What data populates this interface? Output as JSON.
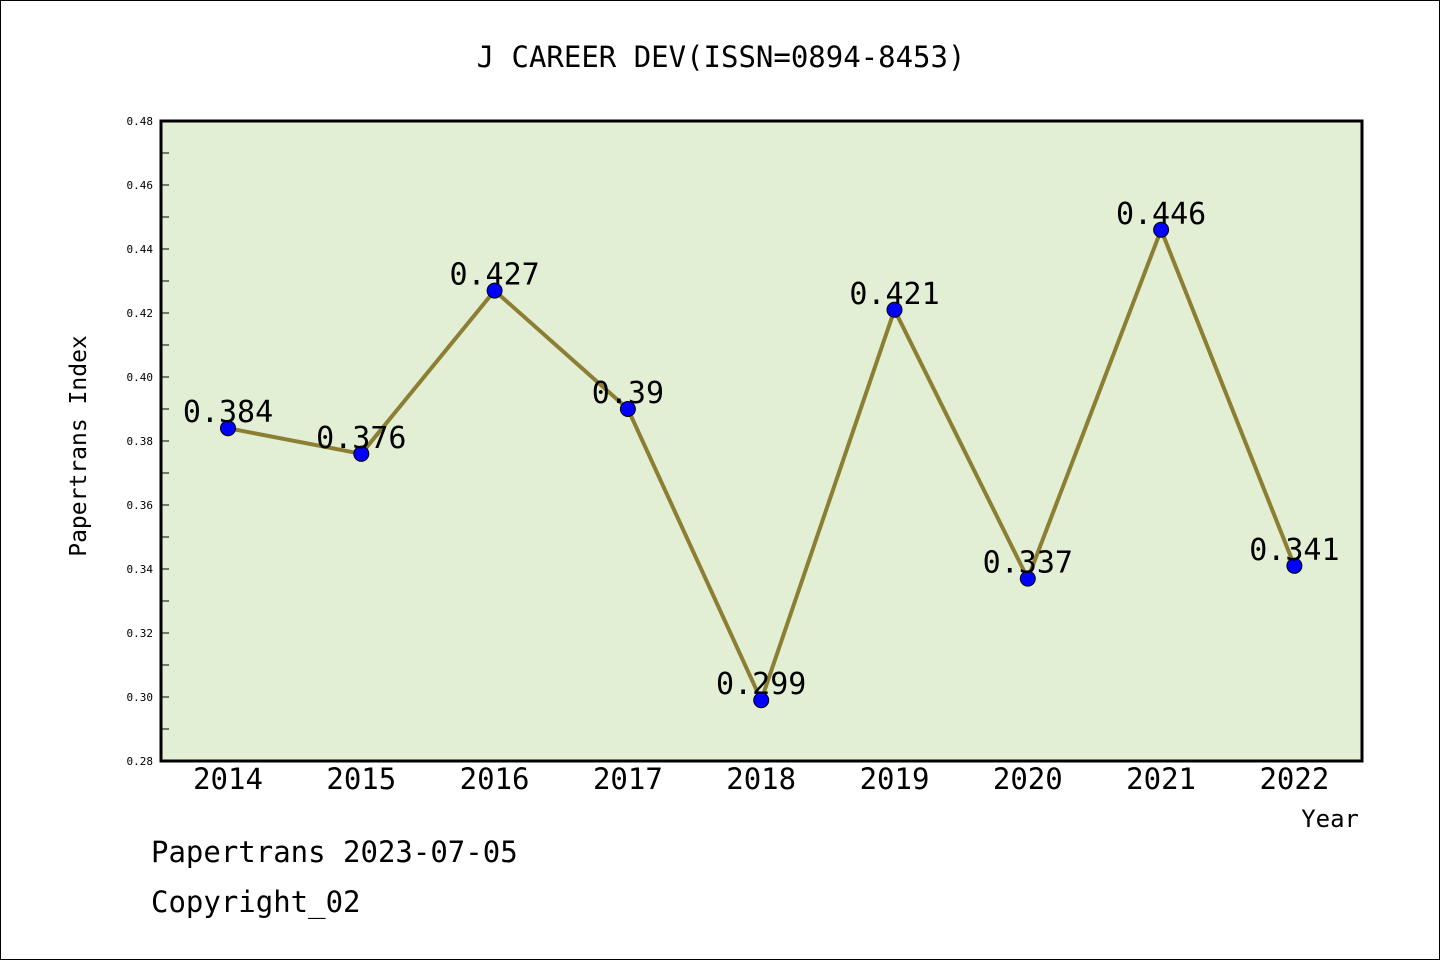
{
  "chart_data": {
    "type": "line",
    "title": "J CAREER DEV(ISSN=0894-8453)",
    "xlabel": "Year",
    "ylabel": "Papertrans Index",
    "categories": [
      "2014",
      "2015",
      "2016",
      "2017",
      "2018",
      "2019",
      "2020",
      "2021",
      "2022"
    ],
    "series": [
      {
        "values": [
          0.384,
          0.376,
          0.427,
          0.39,
          0.299,
          0.421,
          0.337,
          0.446,
          0.341
        ],
        "labels": [
          "0.384",
          "0.376",
          "0.427",
          "0.39",
          "0.299",
          "0.421",
          "0.337",
          "0.446",
          "0.341"
        ]
      }
    ],
    "ylim": [
      0.28,
      0.48
    ],
    "yticks": [
      0.28,
      0.3,
      0.32,
      0.34,
      0.36,
      0.38,
      0.4,
      0.42,
      0.44,
      0.46,
      0.48
    ],
    "ytick_labels": [
      "0.28",
      "0.30",
      "0.32",
      "0.34",
      "0.36",
      "0.38",
      "0.40",
      "0.42",
      "0.44",
      "0.46",
      "0.48"
    ],
    "grid": false,
    "legend": "none",
    "colors": {
      "plot_background": "#e2efd5",
      "line": "#8c7e32",
      "marker": "#0000ff"
    }
  },
  "footer": {
    "date_line": "Papertrans 2023-07-05",
    "copyright_line": "Copyright_02"
  }
}
